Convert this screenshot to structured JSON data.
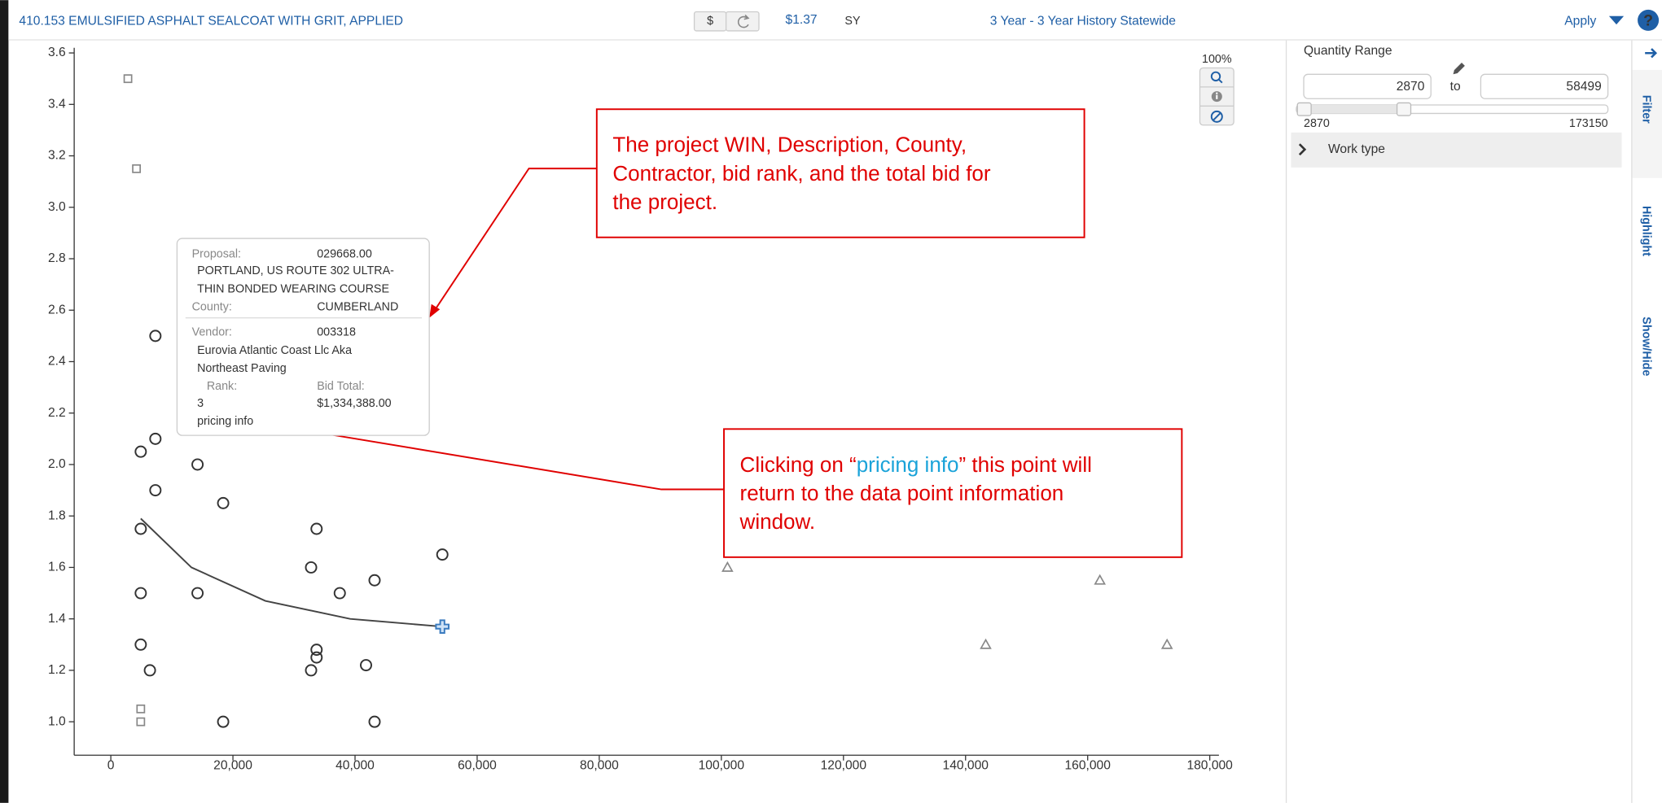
{
  "header": {
    "item": "410.153 EMULSIFIED ASPHALT SEALCOAT WITH GRIT, APPLIED",
    "currency_button": "$",
    "price": "$1.37",
    "unit": "SY",
    "history": "3 Year - 3 Year History Statewide",
    "apply": "Apply",
    "help": "?"
  },
  "zoom": "100%",
  "chart_data": {
    "type": "scatter",
    "xlim": [
      -6000,
      181500
    ],
    "ylim": [
      0.87,
      3.62
    ],
    "xticks": [
      0,
      {
        "value": 20000,
        "label": "20,000"
      },
      {
        "value": 40000,
        "label": "40,000"
      },
      {
        "value": 60000,
        "label": "60,000"
      },
      {
        "value": 80000,
        "label": "80,000"
      },
      {
        "value": 100000,
        "label": "100,000"
      },
      {
        "value": 120000,
        "label": "120,000"
      },
      {
        "value": 140000,
        "label": "140,000"
      },
      {
        "value": 160000,
        "label": "160,000"
      },
      {
        "value": 180000,
        "label": "180,000"
      }
    ],
    "yticks": [
      {
        "value": 1,
        "label": "1.0"
      },
      1.2,
      1.4,
      1.6,
      1.8,
      {
        "value": 2,
        "label": "2.0"
      },
      2.2,
      2.4,
      2.6,
      2.8,
      {
        "value": 3,
        "label": "3.0"
      },
      3.2,
      3.4,
      3.6
    ],
    "series": [
      {
        "marker": "circle",
        "color": "#333333",
        "x": [
          7300,
          7300,
          4900,
          14200,
          7300,
          18400,
          4900,
          33700,
          54300,
          32800,
          43200,
          4900,
          14200,
          37500,
          4900,
          33700,
          33700,
          41800,
          6400,
          32800,
          18400,
          43200
        ],
        "values": [
          2.5,
          2.1,
          2.05,
          2.0,
          1.9,
          1.85,
          1.75,
          1.75,
          1.65,
          1.6,
          1.55,
          1.5,
          1.5,
          1.5,
          1.3,
          1.28,
          1.25,
          1.22,
          1.2,
          1.2,
          1.0,
          1.0
        ]
      },
      {
        "marker": "square",
        "color": "#888888",
        "x": [
          2800,
          4200,
          4900,
          4900
        ],
        "values": [
          3.5,
          3.15,
          1.05,
          1.0
        ]
      },
      {
        "marker": "triangle",
        "color": "#888888",
        "x": [
          101000,
          162000,
          143300,
          173000
        ],
        "values": [
          1.6,
          1.55,
          1.3,
          1.3
        ]
      },
      {
        "marker": "line",
        "color": "#444444",
        "x": [
          4900,
          13200,
          25300,
          39200,
          54300
        ],
        "values": [
          1.79,
          1.6,
          1.47,
          1.4,
          1.37
        ]
      },
      {
        "marker": "plus",
        "color": "#3a7bbf",
        "x": [
          54300
        ],
        "values": [
          1.37
        ]
      }
    ]
  },
  "tooltip": {
    "proposal_label": "Proposal:",
    "proposal": "029668.00",
    "description": [
      "PORTLAND, US ROUTE 302 ULTRA-",
      "THIN BONDED WEARING COURSE"
    ],
    "county_label": "County:",
    "county": "CUMBERLAND",
    "vendor_label": "Vendor:",
    "vendor": "003318",
    "vendor_name": [
      "Eurovia Atlantic Coast Llc Aka",
      "Northeast Paving"
    ],
    "rank_label": "Rank:",
    "bid_total_label": "Bid Total:",
    "rank": "3",
    "bid_total": "$1,334,388.00",
    "link": "pricing info"
  },
  "annotations": [
    {
      "lines": [
        "The project WIN, Description, County,",
        "Contractor, bid rank, and the total bid for",
        "the project."
      ]
    },
    {
      "lines": [
        [
          "Clicking on “",
          "pricing info",
          "” this point will"
        ],
        "return to the data point information",
        "window."
      ]
    }
  ],
  "panel": {
    "quantity_range": "Quantity Range",
    "min_input": "2870",
    "to": "to",
    "max_input": "58499",
    "slider_min": "2870",
    "slider_max": "173150",
    "work_type": "Work type",
    "tabs": [
      "Filter",
      "Highlight",
      "Show/Hide"
    ]
  }
}
